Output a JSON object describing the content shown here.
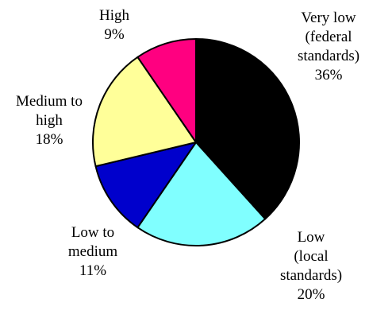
{
  "chart_data": {
    "type": "pie",
    "title": "",
    "start_angle_deg": 0,
    "direction": "clockwise",
    "slices": [
      {
        "label_lines": [
          "Very low",
          "(federal",
          "standards)",
          "36%"
        ],
        "value": 36,
        "color": "#000000"
      },
      {
        "label_lines": [
          "Low",
          "(local",
          "standards)",
          "20%"
        ],
        "value": 20,
        "color": "#80FFFF"
      },
      {
        "label_lines": [
          "Low to",
          "medium",
          "11%"
        ],
        "value": 11,
        "color": "#0000CC"
      },
      {
        "label_lines": [
          "Medium to",
          "high",
          "18%"
        ],
        "value": 18,
        "color": "#FFFF99"
      },
      {
        "label_lines": [
          "High",
          "9%"
        ],
        "value": 9,
        "color": "#FF0080"
      }
    ]
  }
}
